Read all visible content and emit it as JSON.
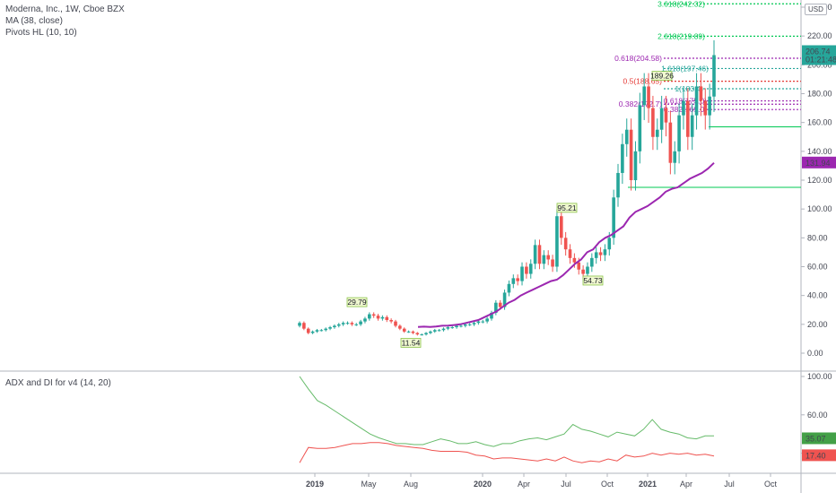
{
  "legend": {
    "title": "Moderna, Inc., 1W, Cboe BZX",
    "ma": "MA (38, close)",
    "pivots": "Pivots HL (10, 10)",
    "adx": "ADX and DI for v4 (14, 20)"
  },
  "currency_label": "USD",
  "price_tag": {
    "value": "206.74",
    "countdown": "01:21:48"
  },
  "colors": {
    "up": "#26a69a",
    "down": "#ef5350",
    "ma": "#9c27b0",
    "plus_di": "#66bb6a",
    "minus_di": "#ef5350",
    "adx": "#000000"
  },
  "chart_data": [
    {
      "type": "candlestick",
      "ylim": [
        -10,
        250
      ],
      "y_ticks": [
        "0.00",
        "20.00",
        "40.00",
        "60.00",
        "80.00",
        "100.00",
        "120.00",
        "140.00",
        "160.00",
        "180.00",
        "200.00",
        "220.00",
        "240.00"
      ],
      "x_ticks": [
        "2019",
        "May",
        "Aug",
        "2020",
        "Apr",
        "Jul",
        "Oct",
        "2021",
        "Apr",
        "Jul",
        "Oct"
      ],
      "close": [
        21,
        17,
        14,
        15,
        16,
        16,
        17,
        18,
        19,
        20,
        21,
        21,
        20,
        20,
        22,
        24,
        27,
        26,
        24,
        25,
        23,
        22,
        19,
        17,
        15,
        15,
        14,
        13,
        13,
        14,
        15,
        16,
        16,
        17,
        18,
        18,
        19,
        19,
        20,
        20,
        21,
        22,
        22,
        24,
        28,
        35,
        32,
        42,
        48,
        52,
        50,
        60,
        55,
        62,
        75,
        62,
        68,
        65,
        60,
        95,
        80,
        72,
        66,
        63,
        58,
        55,
        60,
        66,
        70,
        68,
        72,
        80,
        108,
        125,
        145,
        155,
        120,
        140,
        172,
        185,
        170,
        150,
        155,
        170,
        160,
        132,
        140,
        165,
        175,
        150,
        165,
        185,
        175,
        165,
        178,
        206.74
      ],
      "ma_values": [
        18.2,
        18.4,
        18.2,
        18.5,
        19.0,
        19.1,
        19.5,
        20.0,
        21.0,
        22.0,
        23.0,
        25.0,
        27.0,
        29.0,
        32.0,
        35.0,
        37.0,
        40.0,
        42.0,
        44.0,
        46.0,
        48.0,
        50.0,
        51.0,
        54.0,
        58.0,
        62.0,
        65.0,
        70.0,
        72.0,
        77.0,
        80.0,
        82.0,
        85.0,
        88.0,
        94.0,
        98.0,
        100.0,
        102.0,
        105.0,
        108.0,
        112.0,
        114.0,
        115.0,
        118.0,
        121.0,
        123.0,
        125.0,
        128.0,
        132.0
      ],
      "pivots": [
        {
          "label": "29.79",
          "value": 29.79
        },
        {
          "label": "11.54",
          "value": 11.54
        },
        {
          "label": "95.21",
          "value": 95.21
        },
        {
          "label": "54.73",
          "value": 54.73
        },
        {
          "label": "189.26",
          "value": 189.26
        }
      ],
      "fib_levels": [
        {
          "label": "3.618(242.32)",
          "value": 242.32
        },
        {
          "label": "2.618(219.89)",
          "value": 219.89
        },
        {
          "label": "0.618(204.58)",
          "value": 204.58
        },
        {
          "label": "1.618(197.46)",
          "value": 197.46
        },
        {
          "label": "0.5(188.65)",
          "value": 188.65
        },
        {
          "label": "1(183.4)",
          "value": 183.4
        },
        {
          "label": "0.382(172.7)",
          "value": 172.7
        },
        {
          "label": "0.618(175.0)",
          "value": 175.0
        },
        {
          "label": "0.382(169.0)",
          "value": 169.0
        }
      ],
      "price_tags": [
        {
          "label": "131.94",
          "value": 131.94
        }
      ],
      "hlines": [
        157,
        115
      ]
    },
    {
      "type": "line",
      "title": "ADX and DI for v4 (14, 20)",
      "ylim": [
        0,
        105
      ],
      "y_ticks": [
        "20.00",
        "60.00",
        "100.00"
      ],
      "series": [
        {
          "values": [
            100,
            87,
            75,
            70,
            64,
            58,
            52,
            46,
            40,
            36,
            33,
            30,
            30,
            29,
            29,
            32,
            35,
            33,
            30,
            30,
            32,
            29,
            27,
            30,
            30,
            33,
            35,
            36,
            34,
            37,
            40,
            50,
            45,
            43,
            40,
            37,
            42,
            40,
            38,
            45,
            55,
            45,
            42,
            40,
            36,
            35,
            38,
            38
          ]
        },
        {
          "values": [
            10,
            26,
            25,
            25,
            26,
            28,
            30,
            30,
            31,
            31,
            30,
            28,
            27,
            26,
            25,
            23,
            22,
            22,
            22,
            21,
            18,
            17,
            14,
            15,
            15,
            14,
            13,
            12,
            14,
            12,
            16,
            12,
            10,
            12,
            11,
            14,
            12,
            18,
            16,
            17,
            20,
            18,
            20,
            19,
            20,
            18,
            19,
            17
          ]
        }
      ],
      "tags": [
        {
          "label": "35.07",
          "value": 35.07
        },
        {
          "label": "17.40",
          "value": 17.4
        }
      ]
    }
  ]
}
